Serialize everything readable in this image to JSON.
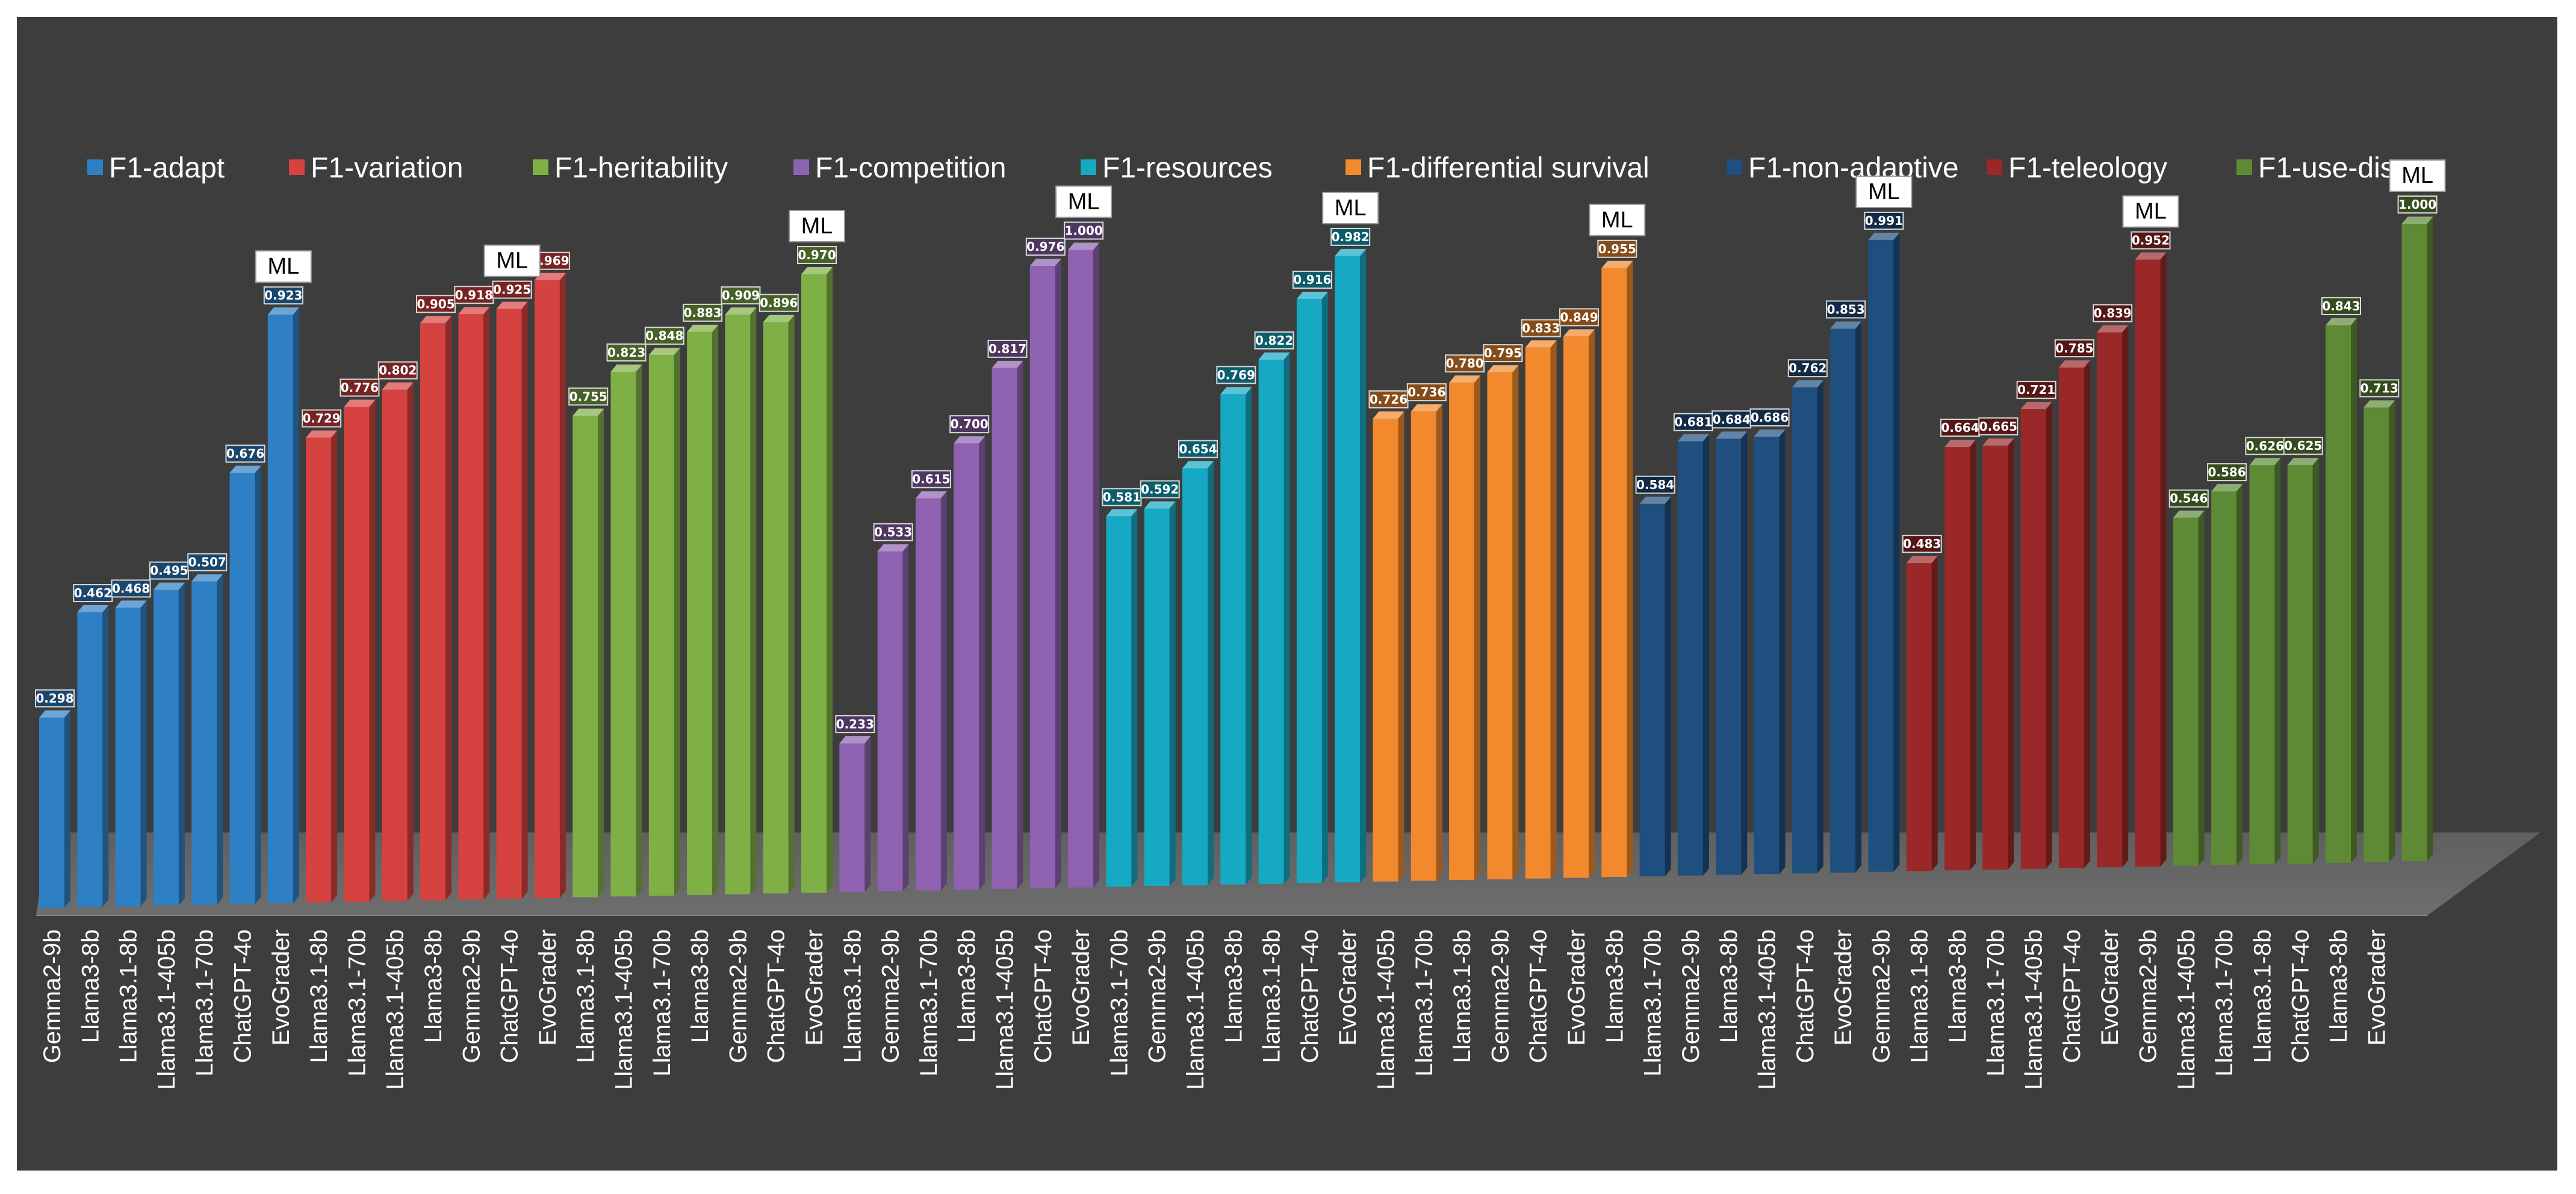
{
  "chart_data": {
    "type": "bar",
    "variant": "3d-clustered",
    "title": "",
    "xlabel": "",
    "ylabel": "",
    "ylim": [
      0,
      1
    ],
    "grid": false,
    "legend_position": "top",
    "marker_text": "ML",
    "series": [
      {
        "name": "F1-adapt",
        "color": "#2f7fc5",
        "categories": [
          "Gemma2-9b",
          "Llama3-8b",
          "Llama3.1-8b",
          "Llama3.1-405b",
          "Llama3.1-70b",
          "ChatGPT-4o",
          "EvoGrader"
        ],
        "values": [
          0.298,
          0.462,
          0.468,
          0.495,
          0.507,
          0.676,
          0.923
        ],
        "labels": [
          "0.298",
          "0.462",
          "0.468",
          "0.495",
          "0.507",
          "0.676",
          "0.923"
        ],
        "ml_index": 6
      },
      {
        "name": "F1-variation",
        "color": "#d6423f",
        "categories": [
          "Llama3.1-8b",
          "Llama3.1-70b",
          "Llama3.1-405b",
          "Llama3-8b",
          "Gemma2-9b",
          "ChatGPT-4o",
          "EvoGrader"
        ],
        "values": [
          0.729,
          0.776,
          0.802,
          0.905,
          0.918,
          0.925,
          0.969
        ],
        "labels": [
          "0.729",
          "0.776",
          "0.802",
          "0.905",
          "0.918",
          "0.925",
          "0.969"
        ],
        "ml_index": 5
      },
      {
        "name": "F1-heritability",
        "color": "#7fb046",
        "categories": [
          "Llama3.1-8b",
          "Llama3.1-405b",
          "Llama3.1-70b",
          "Llama3-8b",
          "Gemma2-9b",
          "ChatGPT-4o",
          "EvoGrader"
        ],
        "values": [
          0.755,
          0.823,
          0.848,
          0.883,
          0.909,
          0.896,
          0.97
        ],
        "labels": [
          "0.755",
          "0.823",
          "0.848",
          "0.883",
          "0.909",
          "0.896",
          "0.970"
        ],
        "ml_index": 6
      },
      {
        "name": "F1-competition",
        "color": "#8e62b0",
        "categories": [
          "Llama3.1-8b",
          "Gemma2-9b",
          "Llama3.1-70b",
          "Llama3-8b",
          "Llama3.1-405b",
          "ChatGPT-4o",
          "EvoGrader"
        ],
        "values": [
          0.233,
          0.533,
          0.615,
          0.7,
          0.817,
          0.976,
          1.0
        ],
        "labels": [
          "0.233",
          "0.533",
          "0.615",
          "0.700",
          "0.817",
          "0.976",
          "1.000"
        ],
        "ml_index": 6
      },
      {
        "name": "F1-resources",
        "color": "#16a9c4",
        "categories": [
          "Llama3.1-70b",
          "Gemma2-9b",
          "Llama3.1-405b",
          "Llama3-8b",
          "Llama3.1-8b",
          "ChatGPT-4o",
          "EvoGrader"
        ],
        "values": [
          0.581,
          0.592,
          0.654,
          0.769,
          0.822,
          0.916,
          0.982
        ],
        "labels": [
          "0.581",
          "0.592",
          "0.654",
          "0.769",
          "0.822",
          "0.916",
          "0.982"
        ],
        "ml_index": 6
      },
      {
        "name": "F1-differential survival",
        "color": "#f2892c",
        "categories": [
          "Llama3.1-405b",
          "Llama3.1-70b",
          "Llama3.1-8b",
          "Gemma2-9b",
          "ChatGPT-4o",
          "EvoGrader",
          "Llama3-8b"
        ],
        "values": [
          0.726,
          0.736,
          0.78,
          0.795,
          0.833,
          0.849,
          0.955
        ],
        "labels": [
          "0.726",
          "0.736",
          "0.780",
          "0.795",
          "0.833",
          "0.849",
          "0.955"
        ],
        "ml_index": 6
      },
      {
        "name": "F1-non-adaptive",
        "color": "#1e4f7f",
        "categories": [
          "Llama3.1-70b",
          "Gemma2-9b",
          "Llama3-8b",
          "Llama3.1-405b",
          "ChatGPT-4o",
          "EvoGrader",
          "Gemma2-9b"
        ],
        "values": [
          0.584,
          0.681,
          0.684,
          0.686,
          0.762,
          0.853,
          0.991
        ],
        "labels": [
          "0.584",
          "0.681",
          "0.684",
          "0.686",
          "0.762",
          "0.853",
          "0.991"
        ],
        "ml_index": 6
      },
      {
        "name": "F1-teleology",
        "color": "#9b2828",
        "categories": [
          "Llama3.1-8b",
          "Llama3-8b",
          "Llama3.1-70b",
          "Llama3.1-405b",
          "ChatGPT-4o",
          "EvoGrader",
          "Gemma2-9b"
        ],
        "values": [
          0.483,
          0.664,
          0.665,
          0.721,
          0.785,
          0.839,
          0.952
        ],
        "labels": [
          "0.483",
          "0.664",
          "0.665",
          "0.721",
          "0.785",
          "0.839",
          "0.952"
        ],
        "ml_index": 6
      },
      {
        "name": "F1-use-disuse",
        "color": "#5e8a35",
        "categories": [
          "Llama3.1-405b",
          "Llama3.1-70b",
          "Llama3.1-8b",
          "ChatGPT-4o",
          "Llama3-8b",
          "EvoGrader",
          ""
        ],
        "values": [
          0.546,
          0.586,
          0.626,
          0.625,
          0.843,
          0.713,
          1.0
        ],
        "labels": [
          "0.546",
          "0.586",
          "0.626",
          "0.625",
          "0.843",
          "0.713",
          "1.000"
        ],
        "ml_index": 6
      }
    ]
  }
}
